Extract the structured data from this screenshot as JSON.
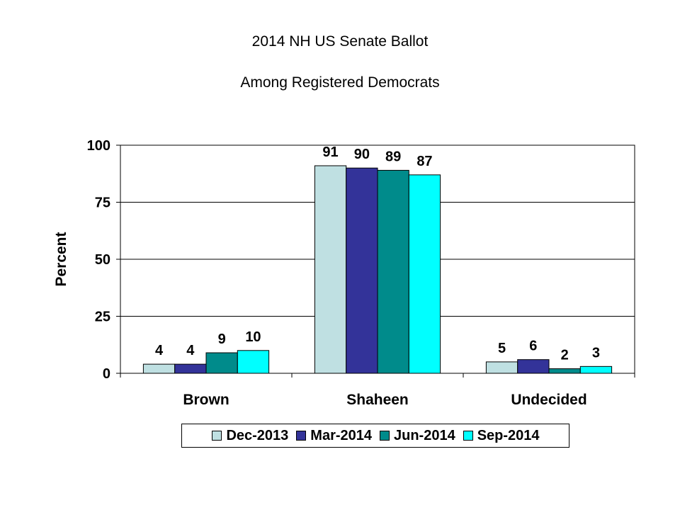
{
  "chart_data": {
    "type": "bar",
    "title": "2014 NH US Senate Ballot",
    "subtitle": "Among Registered Democrats",
    "ylabel": "Percent",
    "xlabel": "",
    "ylim": [
      0,
      100
    ],
    "yticks": [
      "0",
      "25",
      "50",
      "75",
      "100"
    ],
    "grid": true,
    "legend_position": "bottom",
    "categories": [
      "Brown",
      "Shaheen",
      "Undecided"
    ],
    "series": [
      {
        "name": "Dec-2013",
        "color": "#bfe0e2",
        "values": [
          4,
          91,
          5
        ]
      },
      {
        "name": "Mar-2014",
        "color": "#333399",
        "values": [
          4,
          90,
          6
        ]
      },
      {
        "name": "Jun-2014",
        "color": "#008b8b",
        "values": [
          9,
          89,
          2
        ]
      },
      {
        "name": "Sep-2014",
        "color": "#00ffff",
        "values": [
          10,
          87,
          3
        ]
      }
    ]
  }
}
